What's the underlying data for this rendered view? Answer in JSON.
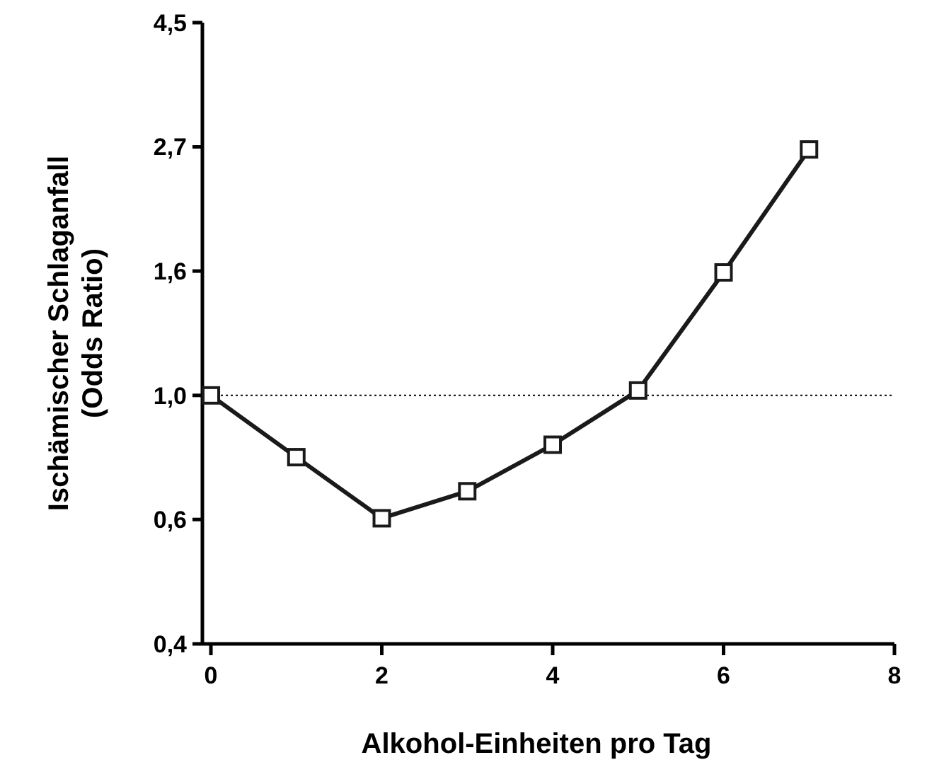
{
  "chart_data": {
    "type": "line",
    "xlabel": "Alkohol-Einheiten pro Tag",
    "ylabel": "Ischämischer Schlaganfall\n(Odds Ratio)",
    "x": [
      0,
      1,
      2,
      3,
      4,
      5,
      6,
      7
    ],
    "series": [
      {
        "color": "#1a1a1a",
        "values": [
          1.0,
          0.78,
          0.61,
          0.68,
          0.82,
          1.02,
          1.64,
          2.69
        ]
      }
    ],
    "xlim": [
      -0.05,
      8
    ],
    "xticks": [
      0,
      2,
      4,
      6,
      8
    ],
    "ylim": [
      0.368,
      4.48
    ],
    "log": "y",
    "yticks": [
      {
        "value": 0.368,
        "label": "0,4"
      },
      {
        "value": 0.607,
        "label": "0,6"
      },
      {
        "value": 1,
        "label": "1,0"
      },
      {
        "value": 1.649,
        "label": "1,6"
      },
      {
        "value": 2.718,
        "label": "2,7"
      },
      {
        "value": 4.48,
        "label": "4,5"
      }
    ],
    "marker": "square",
    "line_style": "solid",
    "grid": false,
    "ref_lines": [
      {
        "axis": "y",
        "value": 1,
        "color": "#000000",
        "line_style": "dotted"
      }
    ]
  }
}
